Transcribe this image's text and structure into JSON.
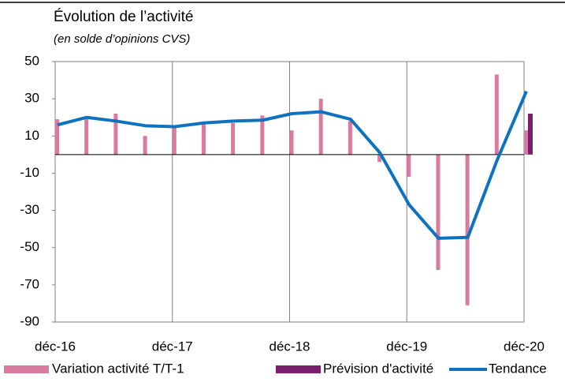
{
  "chart_data": {
    "type": "bar",
    "title": "Évolution de l’activité",
    "subtitle": "(en solde d’opinions CVS)",
    "categories": [
      "déc-16",
      null,
      null,
      null,
      "déc-17",
      null,
      null,
      null,
      "déc-18",
      null,
      null,
      null,
      "déc-19",
      null,
      null,
      null,
      "déc-20"
    ],
    "series": [
      {
        "name": "Variation activité T/T-1",
        "color": "#d97a9e",
        "type": "bar",
        "values": [
          19,
          19,
          22,
          10,
          15,
          17,
          17,
          21,
          13,
          30,
          18,
          -4,
          -12,
          -62,
          -81,
          43,
          13
        ]
      },
      {
        "name": "Prévision d'activité",
        "color": "#7b1e6f",
        "type": "bar",
        "values": [
          null,
          null,
          null,
          null,
          null,
          null,
          null,
          null,
          null,
          null,
          null,
          null,
          null,
          null,
          null,
          null,
          22
        ]
      },
      {
        "name": "Tendance",
        "color": "#0f72c0",
        "type": "line",
        "values": [
          16,
          20,
          18,
          15.5,
          15,
          17,
          18,
          18.5,
          22,
          23,
          19,
          1,
          -27,
          -45,
          -44.5,
          -3,
          34
        ]
      }
    ],
    "ylim": [
      -90,
      50
    ],
    "yticks": [
      -90,
      -70,
      -50,
      -30,
      -10,
      10,
      30,
      50
    ],
    "grid": true
  }
}
